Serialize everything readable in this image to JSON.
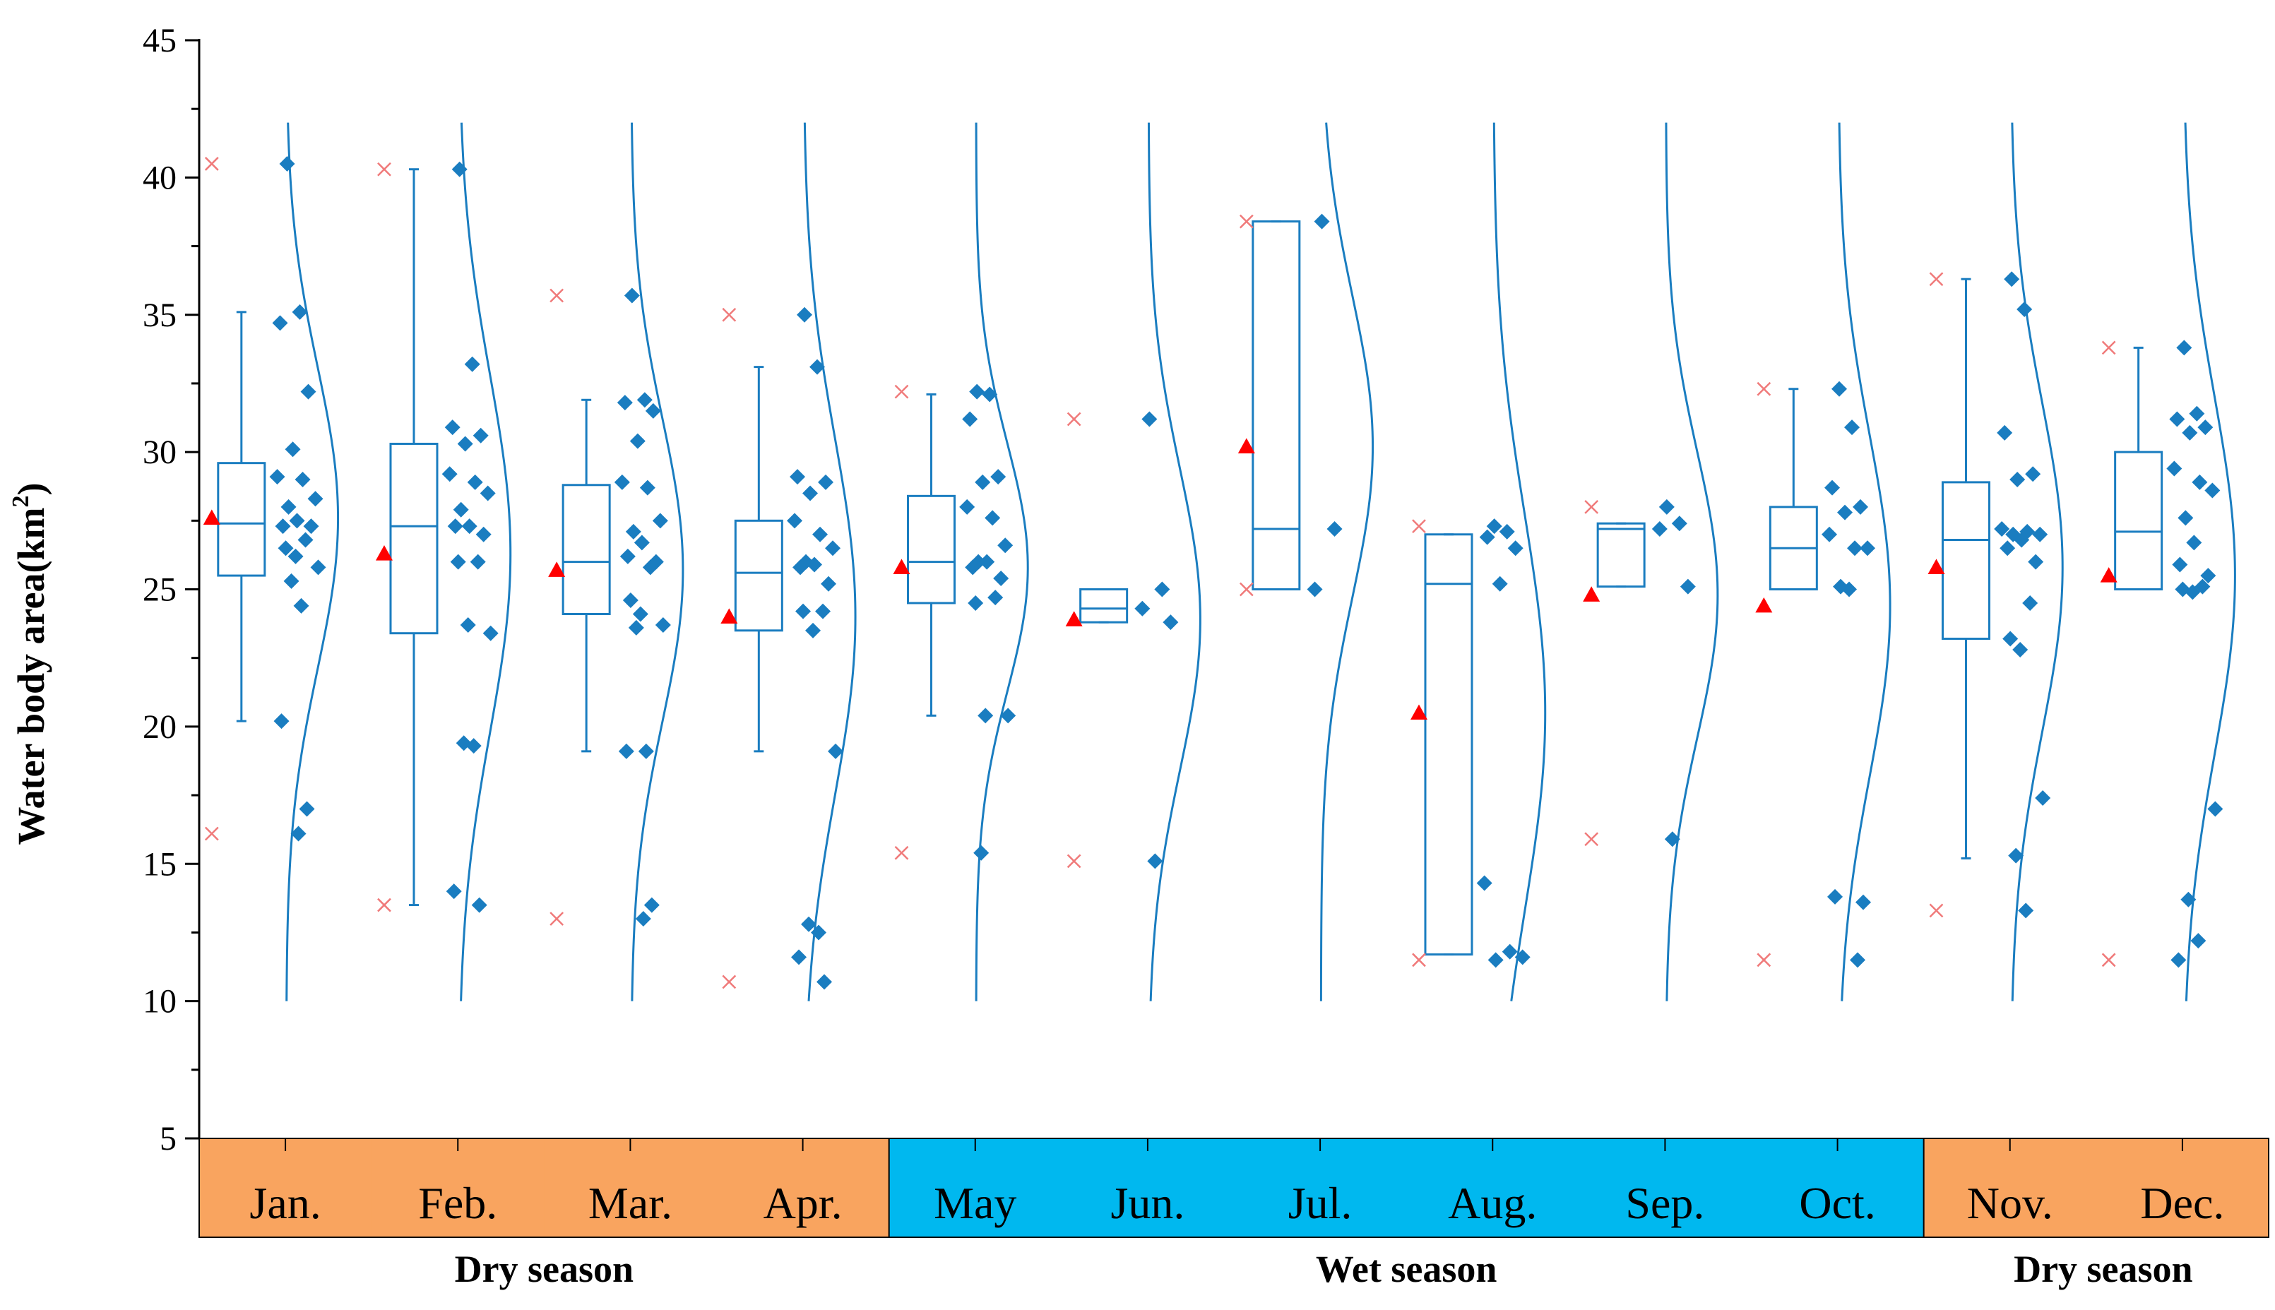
{
  "chart_data": {
    "type": "box",
    "title": "",
    "ylabel_main": "Water body area(km",
    "ylabel_sup": "2",
    "ylabel_end": ")",
    "ylim": [
      5,
      45
    ],
    "yticks": [
      5,
      10,
      15,
      20,
      25,
      30,
      35,
      40,
      45
    ],
    "colors": {
      "box": "#1a7dc0",
      "points": "#1a7dc0",
      "mean": "#ff0000",
      "outlier": "#f07a7a",
      "dry_band": "#f9a45f",
      "wet_band": "#00b8ef",
      "axis": "#000000"
    },
    "groups": [
      {
        "label": "Jan.",
        "season": "dry",
        "box": {
          "q1": 25.5,
          "median": 27.4,
          "q3": 29.6,
          "wlow": 20.2,
          "whigh": 35.1
        },
        "mean": 27.6,
        "outliers": [
          40.5,
          16.1
        ],
        "points": [
          40.5,
          35.1,
          34.7,
          32.2,
          30.1,
          29.1,
          29.0,
          28.3,
          28.0,
          27.5,
          27.3,
          27.3,
          26.8,
          26.5,
          26.2,
          25.8,
          25.3,
          24.4,
          20.2,
          17.0,
          16.1
        ],
        "curve": {
          "mean": 27.6,
          "sd": 5.5
        }
      },
      {
        "label": "Feb.",
        "season": "dry",
        "box": {
          "q1": 23.4,
          "median": 27.3,
          "q3": 30.3,
          "wlow": 13.5,
          "whigh": 40.3
        },
        "mean": 26.3,
        "outliers": [
          40.3,
          13.5
        ],
        "points": [
          40.3,
          33.2,
          30.9,
          30.6,
          30.3,
          29.2,
          28.9,
          28.5,
          27.9,
          27.3,
          27.3,
          27.0,
          26.0,
          26.0,
          23.7,
          23.4,
          19.4,
          19.3,
          14.0,
          13.5
        ],
        "curve": {
          "mean": 26.3,
          "sd": 6.5
        }
      },
      {
        "label": "Mar.",
        "season": "dry",
        "box": {
          "q1": 24.1,
          "median": 26.0,
          "q3": 28.8,
          "wlow": 19.1,
          "whigh": 31.9
        },
        "mean": 25.7,
        "outliers": [
          35.7,
          13.0
        ],
        "points": [
          35.7,
          31.9,
          31.8,
          31.5,
          30.4,
          28.9,
          28.7,
          27.5,
          27.1,
          26.7,
          26.2,
          26.0,
          25.8,
          24.6,
          24.1,
          23.7,
          23.6,
          19.1,
          19.1,
          13.5,
          13.0
        ],
        "curve": {
          "mean": 25.7,
          "sd": 5.5
        }
      },
      {
        "label": "Apr.",
        "season": "dry",
        "box": {
          "q1": 23.5,
          "median": 25.6,
          "q3": 27.5,
          "wlow": 19.1,
          "whigh": 33.1
        },
        "mean": 24.0,
        "outliers": [
          35.0,
          10.7
        ],
        "points": [
          35.0,
          33.1,
          29.1,
          28.9,
          28.5,
          27.5,
          27.0,
          26.5,
          26.0,
          25.9,
          25.8,
          25.2,
          24.2,
          24.2,
          23.5,
          19.1,
          12.8,
          12.5,
          11.6,
          10.7
        ],
        "curve": {
          "mean": 24.0,
          "sd": 6.5
        }
      },
      {
        "label": "May",
        "season": "wet",
        "box": {
          "q1": 24.5,
          "median": 26.0,
          "q3": 28.4,
          "wlow": 20.4,
          "whigh": 32.1
        },
        "mean": 25.8,
        "outliers": [
          32.2,
          15.4
        ],
        "points": [
          32.2,
          32.1,
          31.2,
          29.1,
          28.9,
          28.0,
          27.6,
          26.6,
          26.0,
          26.0,
          25.8,
          25.4,
          24.7,
          24.5,
          20.4,
          20.4,
          15.4
        ],
        "curve": {
          "mean": 25.8,
          "sd": 4.5
        }
      },
      {
        "label": "Jun.",
        "season": "wet",
        "box": {
          "q1": 23.8,
          "median": 24.3,
          "q3": 25.0,
          "wlow": 23.8,
          "whigh": 25.0
        },
        "mean": 23.9,
        "outliers": [
          31.2,
          15.1
        ],
        "points": [
          31.2,
          25.0,
          24.3,
          23.8,
          15.1
        ],
        "curve": {
          "mean": 23.9,
          "sd": 5.5
        }
      },
      {
        "label": "Jul.",
        "season": "wet",
        "box": {
          "q1": 25.0,
          "median": 27.2,
          "q3": 38.4,
          "wlow": 25.0,
          "whigh": 38.4
        },
        "mean": 30.2,
        "outliers": [
          38.4,
          25.0
        ],
        "points": [
          38.4,
          27.2,
          25.0
        ],
        "curve": {
          "mean": 30.2,
          "sd": 5.5
        }
      },
      {
        "label": "Aug.",
        "season": "wet",
        "box": {
          "q1": 11.7,
          "median": 25.2,
          "q3": 27.0,
          "wlow": 11.7,
          "whigh": 27.0
        },
        "mean": 20.5,
        "outliers": [
          27.3,
          11.5
        ],
        "points": [
          27.3,
          27.1,
          26.9,
          26.5,
          25.2,
          14.3,
          11.8,
          11.6,
          11.5
        ],
        "curve": {
          "mean": 20.5,
          "sd": 7.2
        }
      },
      {
        "label": "Sep.",
        "season": "wet",
        "box": {
          "q1": 25.1,
          "median": 27.2,
          "q3": 27.4,
          "wlow": 25.1,
          "whigh": 27.4
        },
        "mean": 24.8,
        "outliers": [
          28.0,
          15.9
        ],
        "points": [
          28.0,
          27.4,
          27.2,
          25.1,
          15.9
        ],
        "curve": {
          "mean": 24.8,
          "sd": 5.2
        }
      },
      {
        "label": "Oct.",
        "season": "wet",
        "box": {
          "q1": 25.0,
          "median": 26.5,
          "q3": 28.0,
          "wlow": 25.0,
          "whigh": 32.3
        },
        "mean": 24.4,
        "outliers": [
          32.3,
          11.5
        ],
        "points": [
          32.3,
          30.9,
          28.7,
          28.0,
          27.8,
          27.0,
          26.5,
          26.5,
          25.1,
          25.0,
          13.8,
          13.6,
          11.5
        ],
        "curve": {
          "mean": 24.4,
          "sd": 6.2
        }
      },
      {
        "label": "Nov.",
        "season": "dry",
        "box": {
          "q1": 23.2,
          "median": 26.8,
          "q3": 28.9,
          "wlow": 15.2,
          "whigh": 36.3
        },
        "mean": 25.8,
        "outliers": [
          36.3,
          13.3
        ],
        "points": [
          36.3,
          35.2,
          30.7,
          29.2,
          29.0,
          27.2,
          27.1,
          27.0,
          27.0,
          26.8,
          26.5,
          26.0,
          24.5,
          23.2,
          22.8,
          17.4,
          15.3,
          13.3
        ],
        "curve": {
          "mean": 25.8,
          "sd": 6.0
        }
      },
      {
        "label": "Dec.",
        "season": "dry",
        "box": {
          "q1": 25.0,
          "median": 27.1,
          "q3": 30.0,
          "wlow": 25.0,
          "whigh": 33.8
        },
        "mean": 25.5,
        "outliers": [
          33.8,
          11.5
        ],
        "points": [
          33.8,
          31.4,
          31.2,
          30.9,
          30.7,
          29.4,
          28.9,
          28.6,
          27.6,
          26.7,
          25.9,
          25.5,
          25.1,
          25.0,
          24.9,
          17.0,
          13.7,
          12.2,
          11.5
        ],
        "curve": {
          "mean": 25.5,
          "sd": 6.5
        }
      }
    ],
    "seasons": [
      {
        "label": "Dry season",
        "from": 0,
        "to": 3
      },
      {
        "label": "Wet season",
        "from": 4,
        "to": 9
      },
      {
        "label": "Dry season",
        "from": 10,
        "to": 11
      }
    ]
  }
}
